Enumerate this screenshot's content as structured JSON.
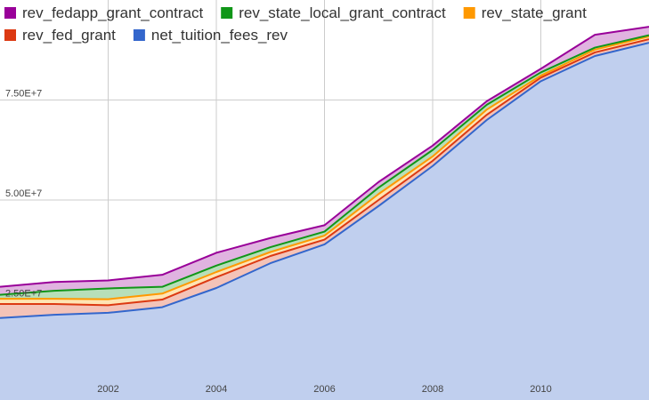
{
  "chart_data": {
    "type": "area",
    "stacked": true,
    "title": "",
    "xlabel": "",
    "ylabel": "",
    "x": [
      2000,
      2001,
      2002,
      2003,
      2004,
      2005,
      2006,
      2007,
      2008,
      2009,
      2010,
      2011,
      2012
    ],
    "xlim": [
      2000,
      2012
    ],
    "ylim": [
      0,
      100000000
    ],
    "x_ticks": [
      {
        "value": 2002,
        "label": "2002"
      },
      {
        "value": 2004,
        "label": "2004"
      },
      {
        "value": 2006,
        "label": "2006"
      },
      {
        "value": 2008,
        "label": "2008"
      },
      {
        "value": 2010,
        "label": "2010"
      }
    ],
    "y_ticks": [
      {
        "value": 25000000,
        "label": "2.50E+7"
      },
      {
        "value": 50000000,
        "label": "5.00E+7"
      },
      {
        "value": 75000000,
        "label": "7.50E+7"
      }
    ],
    "grid": true,
    "legend_position": "top",
    "series": [
      {
        "name": "net_tuition_fees_rev",
        "color": "#3366cc",
        "fill": "#c0cfee",
        "values": [
          20500000,
          21300000,
          21800000,
          23200000,
          28000000,
          34200000,
          38900000,
          48500000,
          58500000,
          70000000,
          79700000,
          86000000,
          89300000
        ]
      },
      {
        "name": "rev_fed_grant",
        "color": "#dc3912",
        "fill": "#f4c3b8",
        "values": [
          3500000,
          2700000,
          1900000,
          1900000,
          2700000,
          1800000,
          1200000,
          1500000,
          1300000,
          1300000,
          900000,
          900000,
          900000
        ]
      },
      {
        "name": "rev_state_grant",
        "color": "#ff9900",
        "fill": "#ffe4b3",
        "values": [
          1300000,
          1300000,
          1500000,
          1500000,
          1300000,
          1000000,
          1000000,
          1500000,
          1100000,
          1300000,
          500000,
          700000,
          700000
        ]
      },
      {
        "name": "rev_state_local_grant_contract",
        "color": "#109618",
        "fill": "#b7dfb9",
        "values": [
          1000000,
          2000000,
          2700000,
          1700000,
          1600000,
          1200000,
          1000000,
          1600000,
          1600000,
          1200000,
          800000,
          500000,
          300000
        ]
      },
      {
        "name": "rev_fedapp_grant_contract",
        "color": "#990099",
        "fill": "#e0b3e0",
        "values": [
          2000000,
          2200000,
          2000000,
          3000000,
          3200000,
          2300000,
          1600000,
          1400000,
          1100000,
          900000,
          900000,
          3200000,
          2100000
        ]
      }
    ]
  }
}
